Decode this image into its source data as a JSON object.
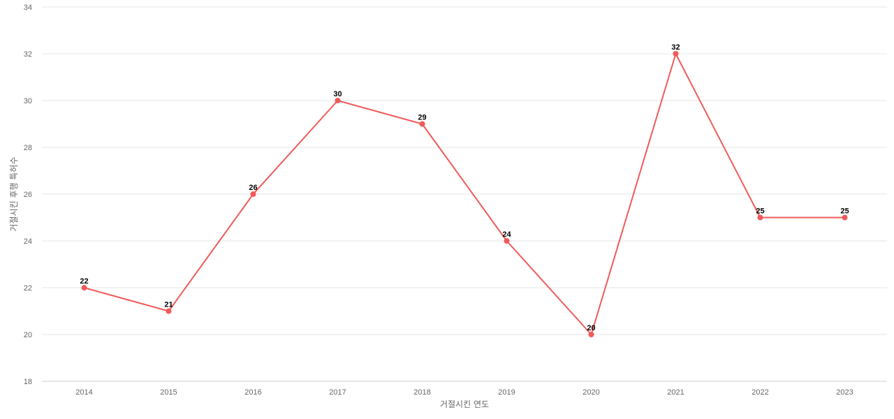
{
  "chart_data": {
    "type": "line",
    "title": "",
    "xlabel": "거절시킨 연도",
    "ylabel": "거절시킨 후행 특허수",
    "categories": [
      "2014",
      "2015",
      "2016",
      "2017",
      "2018",
      "2019",
      "2020",
      "2021",
      "2022",
      "2023"
    ],
    "series": [
      {
        "values": [
          22,
          21,
          26,
          30,
          29,
          24,
          20,
          32,
          25,
          25
        ],
        "color": "#f05a5a"
      }
    ],
    "ylim": [
      18,
      34
    ],
    "yticks": [
      18,
      20,
      22,
      24,
      26,
      28,
      30,
      32,
      34
    ],
    "grid": true,
    "data_labels": true,
    "legend": "none"
  }
}
